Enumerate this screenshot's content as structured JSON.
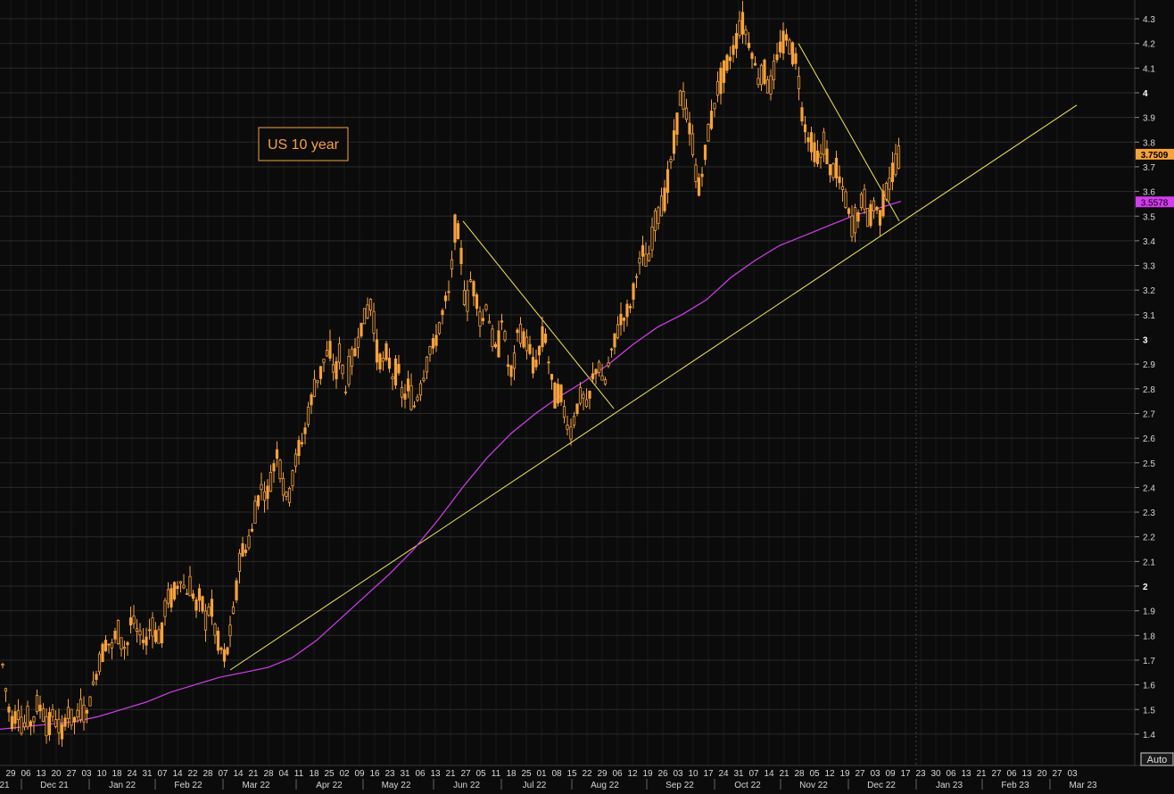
{
  "chart_data": {
    "type": "candlestick",
    "title": "US 10 year",
    "last_price": "3.7509",
    "ma_value": "3.5578",
    "auto_label": "Auto",
    "colors": {
      "background": "#0b0b0b",
      "candle": "#f7a23a",
      "moving_average": "#d43cf0",
      "trendline": "#f4e84a",
      "title_border": "#f7a23a",
      "last_price_tag": "#f7a23a",
      "ma_tag": "#d43cf0"
    },
    "ylim": [
      1.32,
      4.36
    ],
    "y_ticks": [
      "1.4",
      "1.5",
      "1.6",
      "1.7",
      "1.8",
      "1.9",
      "2",
      "2.1",
      "2.2",
      "2.3",
      "2.4",
      "2.5",
      "2.6",
      "2.7",
      "2.8",
      "2.9",
      "3",
      "3.1",
      "3.2",
      "3.3",
      "3.4",
      "3.5",
      "3.6",
      "3.7",
      "3.8",
      "3.9",
      "4",
      "4.1",
      "4.2",
      "4.3"
    ],
    "x_day_ticks": [
      "29",
      "06",
      "13",
      "20",
      "27",
      "03",
      "10",
      "18",
      "24",
      "31",
      "07",
      "14",
      "22",
      "28",
      "07",
      "14",
      "21",
      "28",
      "04",
      "11",
      "18",
      "25",
      "02",
      "09",
      "16",
      "23",
      "31",
      "06",
      "13",
      "21",
      "27",
      "05",
      "11",
      "18",
      "25",
      "01",
      "08",
      "15",
      "22",
      "29",
      "06",
      "12",
      "19",
      "26",
      "03",
      "10",
      "17",
      "24",
      "31",
      "07",
      "14",
      "21",
      "28",
      "05",
      "12",
      "19",
      "27",
      "03",
      "09",
      "17",
      "23",
      "30",
      "06",
      "13",
      "21",
      "27",
      "06",
      "13",
      "20",
      "27",
      "03"
    ],
    "x_month_ticks": [
      "21",
      "Dec 21",
      "Jan 22",
      "Feb 22",
      "Mar 22",
      "Apr 22",
      "May 22",
      "Jun 22",
      "Jul 22",
      "Aug 22",
      "Sep 22",
      "Oct 22",
      "Nov 22",
      "Dec 22",
      "Jan 23",
      "Feb 23",
      "Mar 23"
    ],
    "price_path": [
      [
        1.68,
        1.52,
        1.45,
        1.5,
        1.42,
        1.46,
        1.44,
        1.52,
        1.5,
        1.42,
        1.48,
        1.44,
        1.4,
        1.5,
        1.45,
        1.47,
        1.5,
        1.48,
        1.58,
        1.65,
        1.73,
        1.78,
        1.75,
        1.82,
        1.77,
        1.74,
        1.88,
        1.82,
        1.79,
        1.78,
        1.85,
        1.8,
        1.79,
        1.94,
        1.96,
        1.99,
        2.03,
        1.97,
        2.0,
        1.92,
        1.97,
        1.85,
        1.94,
        1.8,
        1.75,
        1.7,
        1.81
      ],
      [
        1.81,
        1.95,
        2.14,
        2.15,
        2.2,
        2.33,
        2.4,
        2.36,
        2.45,
        2.55,
        2.42,
        2.34,
        2.45,
        2.55,
        2.6,
        2.7,
        2.8,
        2.85,
        2.92,
        2.96,
        2.85,
        2.95,
        2.79,
        2.9,
        2.96,
        3.05,
        3.1,
        3.15,
        2.96,
        2.9,
        2.95,
        2.85,
        2.9,
        2.75,
        2.81,
        2.72,
        2.78,
        2.85,
        2.95,
        2.98,
        3.05,
        3.15,
        3.2,
        3.48,
        3.38,
        3.1,
        3.25,
        3.18,
        3.05,
        3.15,
        3.0,
        2.95,
        3.1,
        2.9,
        2.85,
        3.05,
        3.0,
        2.98,
        2.88,
        2.95,
        3.05,
        2.88,
        2.78,
        2.8,
        2.68,
        2.62
      ],
      [
        2.62,
        2.72,
        2.78,
        2.72,
        2.85,
        2.9,
        2.8,
        2.92,
        3.0,
        3.08,
        3.1,
        3.15,
        3.28,
        3.35,
        3.3,
        3.45,
        3.52,
        3.58,
        3.7,
        3.85,
        4.0,
        3.9,
        3.8,
        3.6,
        3.7,
        3.85,
        3.95,
        4.05,
        4.1,
        4.15,
        4.22,
        4.3,
        4.22,
        4.15,
        4.05,
        4.1,
        4.0,
        4.1,
        4.2,
        4.22,
        4.18,
        4.12,
        3.9,
        3.82,
        3.78,
        3.72,
        3.8,
        3.68,
        3.7,
        3.62,
        3.55,
        3.45,
        3.5,
        3.58,
        3.48,
        3.55,
        3.5,
        3.6,
        3.65,
        3.72,
        3.75
      ]
    ],
    "ma_path": [
      1.42,
      1.43,
      1.44,
      1.45,
      1.47,
      1.5,
      1.53,
      1.57,
      1.6,
      1.63,
      1.65,
      1.67,
      1.71,
      1.78,
      1.87,
      1.96,
      2.05,
      2.15,
      2.27,
      2.4,
      2.52,
      2.62,
      2.7,
      2.77,
      2.83,
      2.9,
      2.98,
      3.05,
      3.1,
      3.16,
      3.25,
      3.32,
      3.38,
      3.42,
      3.46,
      3.5,
      3.53,
      3.56
    ]
  }
}
